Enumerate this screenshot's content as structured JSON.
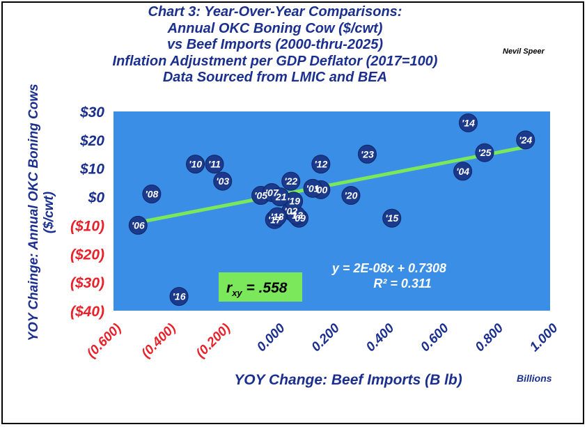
{
  "title_lines": [
    "Chart 3:  Year-Over-Year Comparisons:",
    "Annual OKC Boning Cow ($/cwt)",
    "vs Beef Imports (2000-thru-2025)",
    "Inflation Adjustment per GDP Deflator (2017=100)",
    "Data Sourced from LMIC and BEA"
  ],
  "author": "Nevil Speer",
  "colors": {
    "plot_bg": "#3b8ee6",
    "point": "#1b3a8c",
    "trend": "#7ae85a",
    "title": "#1b2f8f",
    "negative": "#e8212b",
    "rbox": "#7ae85a"
  },
  "chart_data": {
    "type": "scatter",
    "title": "Chart 3:  Year-Over-Year Comparisons: Annual OKC Boning Cow ($/cwt) vs Beef Imports (2000-thru-2025) Inflation Adjustment per GDP Deflator (2017=100) Data Sourced from LMIC and BEA",
    "xlabel": "YOY Change:  Beef Imports (B lb)",
    "xunit": "Billions",
    "ylabel_lines": [
      "YOY Chainge: Annual OKC Boning Cows",
      "($/cwt)"
    ],
    "xlim": [
      -0.6,
      1.0
    ],
    "ylim": [
      -40,
      30
    ],
    "grid": false,
    "x_ticks": [
      {
        "value": -0.6,
        "label": "(0.600)"
      },
      {
        "value": -0.4,
        "label": "(0.400)"
      },
      {
        "value": -0.2,
        "label": "(0.200)"
      },
      {
        "value": 0.0,
        "label": "0.000"
      },
      {
        "value": 0.2,
        "label": "0.200"
      },
      {
        "value": 0.4,
        "label": "0.400"
      },
      {
        "value": 0.6,
        "label": "0.600"
      },
      {
        "value": 0.8,
        "label": "0.800"
      },
      {
        "value": 1.0,
        "label": "1.000"
      }
    ],
    "y_ticks": [
      {
        "value": 30,
        "label": "$30"
      },
      {
        "value": 20,
        "label": "$20"
      },
      {
        "value": 10,
        "label": "$10"
      },
      {
        "value": 0,
        "label": "$0"
      },
      {
        "value": -10,
        "label": "($10)"
      },
      {
        "value": -20,
        "label": "($20)"
      },
      {
        "value": -30,
        "label": "($30)"
      },
      {
        "value": -40,
        "label": "($40)"
      }
    ],
    "points": [
      {
        "label": "'00",
        "x": 0.16,
        "y": 2.5
      },
      {
        "label": "'01",
        "x": 0.13,
        "y": 3.0
      },
      {
        "label": "'02",
        "x": 0.05,
        "y": -5.0
      },
      {
        "label": "'03",
        "x": -0.2,
        "y": 5.5
      },
      {
        "label": "'04",
        "x": 0.68,
        "y": 9.0
      },
      {
        "label": "'05",
        "x": -0.06,
        "y": 0.5
      },
      {
        "label": "'06",
        "x": -0.51,
        "y": -10.0
      },
      {
        "label": "'07",
        "x": -0.02,
        "y": 1.5
      },
      {
        "label": "'08",
        "x": -0.46,
        "y": 1.0
      },
      {
        "label": "'09",
        "x": 0.08,
        "y": -7.5
      },
      {
        "label": "'10",
        "x": -0.3,
        "y": 11.5
      },
      {
        "label": "'11",
        "x": -0.23,
        "y": 11.5
      },
      {
        "label": "'12",
        "x": 0.16,
        "y": 11.5
      },
      {
        "label": "'13",
        "x": 0.07,
        "y": -6.5
      },
      {
        "label": "'14",
        "x": 0.7,
        "y": 26.0
      },
      {
        "label": "'15",
        "x": 0.42,
        "y": -7.5
      },
      {
        "label": "'16",
        "x": -0.36,
        "y": -35.0
      },
      {
        "label": "'17",
        "x": -0.01,
        "y": -8.0
      },
      {
        "label": "'18",
        "x": 0.0,
        "y": -7.0
      },
      {
        "label": "'19",
        "x": 0.06,
        "y": -1.5
      },
      {
        "label": "'20",
        "x": 0.27,
        "y": 0.5
      },
      {
        "label": "'21",
        "x": 0.01,
        "y": 0.0
      },
      {
        "label": "'22",
        "x": 0.05,
        "y": 5.5
      },
      {
        "label": "'23",
        "x": 0.33,
        "y": 15.0
      },
      {
        "label": "'24",
        "x": 0.91,
        "y": 20.0
      },
      {
        "label": "'25",
        "x": 0.76,
        "y": 15.5
      }
    ],
    "trendline": {
      "x": [
        -0.51,
        0.91
      ],
      "y": [
        -9.0,
        17.5
      ]
    },
    "equation_lines": [
      "y = 2E-08x + 0.7308",
      "R² = 0.311"
    ],
    "correlation": {
      "prefix": "r",
      "subscript": "xy",
      "text": " = .558"
    }
  }
}
